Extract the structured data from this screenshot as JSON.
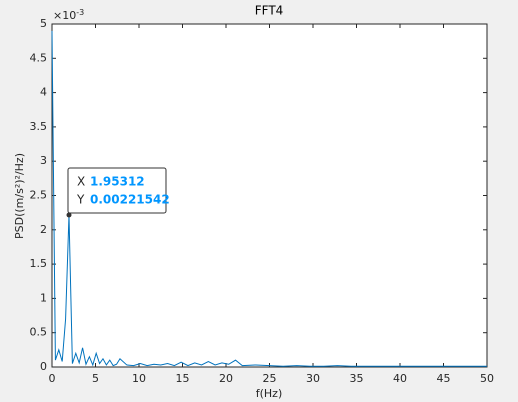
{
  "chart_data": {
    "type": "line",
    "title": "FFT4",
    "xlabel": "f(Hz)",
    "ylabel": "PSD((m/s²)²/Hz)",
    "y_exponent": {
      "base": "×10",
      "power": "-3"
    },
    "x": [
      0,
      0.390625,
      0.78125,
      1.171875,
      1.5625,
      1.953125,
      2.34375,
      2.734375,
      3.125,
      3.515625,
      3.90625,
      4.296875,
      4.6875,
      5.078125,
      5.46875,
      5.859375,
      6.25,
      6.640625,
      7.03125,
      7.421875,
      7.8125,
      8.59375,
      9.375,
      10.15625,
      10.9375,
      11.71875,
      12.5,
      13.28125,
      14.0625,
      14.84375,
      15.625,
      16.40625,
      17.1875,
      17.96875,
      18.75,
      19.53125,
      20.3125,
      21.09375,
      21.875,
      23.4375,
      25,
      26.5625,
      28.125,
      29.6875,
      31.25,
      32.8125,
      34.375,
      35.9375,
      37.5,
      39.0625,
      40.625,
      42.1875,
      43.75,
      45.3125,
      46.875,
      48.4375,
      50
    ],
    "series": [
      {
        "color": "#0072bd",
        "values": [
          0.0049,
          0.0001,
          0.00025,
          8e-05,
          0.0007,
          0.00221542,
          5e-05,
          0.0002,
          6e-05,
          0.00028,
          4e-05,
          0.00015,
          3e-05,
          0.0002,
          5e-05,
          0.00012,
          3e-05,
          0.0001,
          2e-05,
          4e-05,
          0.00012,
          3e-05,
          2e-05,
          5e-05,
          2e-05,
          4e-05,
          3e-05,
          5e-05,
          2e-05,
          7e-05,
          2e-05,
          6e-05,
          3e-05,
          8e-05,
          3e-05,
          6e-05,
          4e-05,
          0.0001,
          2e-05,
          3e-05,
          2e-05,
          1e-05,
          2e-05,
          1e-05,
          1e-05,
          2e-05,
          1e-05,
          1e-05,
          1e-05,
          1e-05,
          1e-05,
          1e-05,
          1e-05,
          1e-05,
          1e-05,
          1e-05,
          1e-05
        ]
      }
    ],
    "xlim": [
      0,
      50
    ],
    "xticks": [
      0,
      5,
      10,
      15,
      20,
      25,
      30,
      35,
      40,
      45,
      50
    ],
    "ylim": [
      0,
      0.005
    ],
    "yticks": [
      0,
      {
        "value": 0.0005,
        "label": "0.5"
      },
      {
        "value": 0.001,
        "label": "1"
      },
      {
        "value": 0.0015,
        "label": "1.5"
      },
      {
        "value": 0.002,
        "label": "2"
      },
      {
        "value": 0.0025,
        "label": "2.5"
      },
      {
        "value": 0.003,
        "label": "3"
      },
      {
        "value": 0.0035,
        "label": "3.5"
      },
      {
        "value": 0.004,
        "label": "4"
      },
      {
        "value": 0.0045,
        "label": "4.5"
      },
      {
        "value": 0.005,
        "label": "5"
      }
    ],
    "grid": false,
    "datatip": {
      "x_label": "X",
      "x_value": "1.95312",
      "y_label": "Y",
      "y_value": "0.00221542"
    }
  }
}
